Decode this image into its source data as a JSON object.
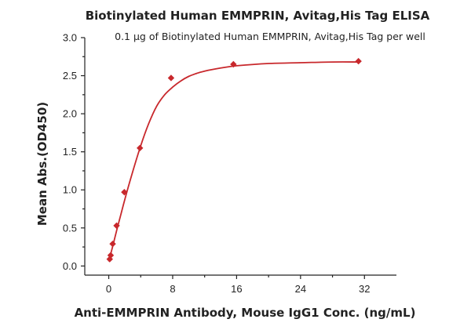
{
  "chart_data": {
    "type": "scatter",
    "title": "Biotinylated Human EMMPRIN, Avitag,His Tag ELISA",
    "subtitle": "0.1 μg of Biotinylated Human EMMPRIN, Avitag,His Tag per well",
    "xlabel": "Anti-EMMPRIN Antibody, Mouse IgG1 Conc. (ng/mL)",
    "ylabel": "Mean Abs.(OD450)",
    "xlim": [
      -3,
      36
    ],
    "ylim": [
      -0.12,
      3.0
    ],
    "xticks": [
      0,
      8,
      16,
      24,
      32
    ],
    "xtick_labels": [
      "0",
      "8",
      "16",
      "24",
      "32"
    ],
    "yticks": [
      0.0,
      0.5,
      1.0,
      1.5,
      2.0,
      2.5,
      3.0
    ],
    "ytick_labels": [
      "0.0",
      "0.5",
      "1.0",
      "1.5",
      "2.0",
      "2.5",
      "3.0"
    ],
    "grid": false,
    "legend": "none",
    "color": "#c8282c",
    "marker": "diamond",
    "series": [
      {
        "x": [
          0.12,
          0.24,
          0.49,
          0.98,
          1.95,
          3.9,
          7.8,
          15.6,
          31.25
        ],
        "y": [
          0.09,
          0.14,
          0.29,
          0.53,
          0.97,
          1.55,
          2.47,
          2.65,
          2.69
        ]
      }
    ],
    "fit_curve": {
      "x": [
        0,
        0.5,
        1,
        1.5,
        2,
        3,
        4,
        5,
        6,
        7,
        8,
        9,
        10,
        11,
        12,
        14,
        16,
        20,
        24,
        28,
        31.25
      ],
      "y": [
        0.06,
        0.26,
        0.47,
        0.67,
        0.87,
        1.24,
        1.58,
        1.87,
        2.1,
        2.25,
        2.35,
        2.43,
        2.49,
        2.53,
        2.56,
        2.6,
        2.63,
        2.66,
        2.67,
        2.68,
        2.68
      ]
    }
  }
}
